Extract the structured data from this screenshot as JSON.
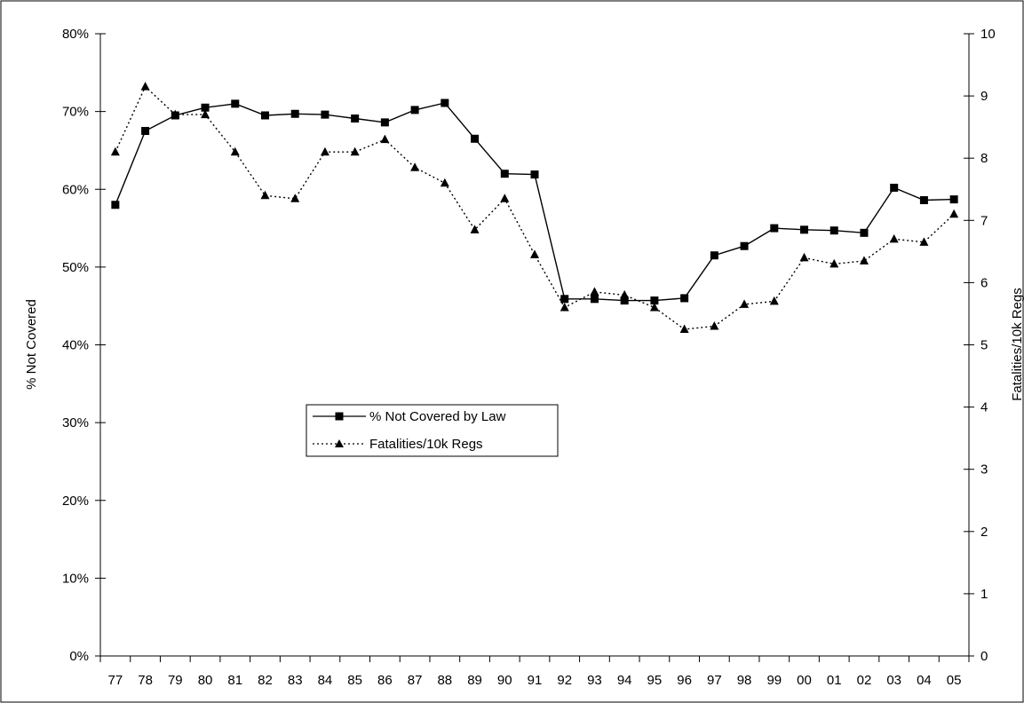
{
  "chart_data": {
    "type": "line",
    "categories": [
      "77",
      "78",
      "79",
      "80",
      "81",
      "82",
      "83",
      "84",
      "85",
      "86",
      "87",
      "88",
      "89",
      "90",
      "91",
      "92",
      "93",
      "94",
      "95",
      "96",
      "97",
      "98",
      "99",
      "00",
      "01",
      "02",
      "03",
      "04",
      "05"
    ],
    "series": [
      {
        "name": "% Not Covered by Law",
        "axis": "left",
        "marker": "square",
        "line_style": "solid",
        "values": [
          58.0,
          67.5,
          69.5,
          70.5,
          71.0,
          69.5,
          69.7,
          69.6,
          69.1,
          68.6,
          70.2,
          71.1,
          66.5,
          62.0,
          61.9,
          45.9,
          45.9,
          45.7,
          45.7,
          46.0,
          51.5,
          52.7,
          55.0,
          54.8,
          54.7,
          54.4,
          60.2,
          58.6,
          58.7
        ]
      },
      {
        "name": "Fatalities/10k Regs",
        "axis": "right",
        "marker": "triangle",
        "line_style": "dotted",
        "values": [
          8.1,
          9.15,
          8.7,
          8.7,
          8.1,
          7.4,
          7.35,
          8.1,
          8.1,
          8.3,
          7.85,
          7.6,
          6.85,
          7.35,
          6.45,
          5.6,
          5.85,
          5.8,
          5.6,
          5.25,
          5.3,
          5.65,
          5.7,
          6.4,
          6.3,
          6.35,
          6.7,
          6.65,
          7.1
        ]
      }
    ],
    "y_left": {
      "label": "% Not Covered",
      "ylim": [
        0,
        80
      ],
      "ticks": [
        "0%",
        "10%",
        "20%",
        "30%",
        "40%",
        "50%",
        "60%",
        "70%",
        "80%"
      ]
    },
    "y_right": {
      "label": "Fatalities/10k Regs",
      "ylim": [
        0,
        10
      ],
      "ticks": [
        "0",
        "1",
        "2",
        "3",
        "4",
        "5",
        "6",
        "7",
        "8",
        "9",
        "10"
      ]
    },
    "xlabel": "",
    "title": "",
    "grid": false,
    "legend_position": "center-left"
  }
}
